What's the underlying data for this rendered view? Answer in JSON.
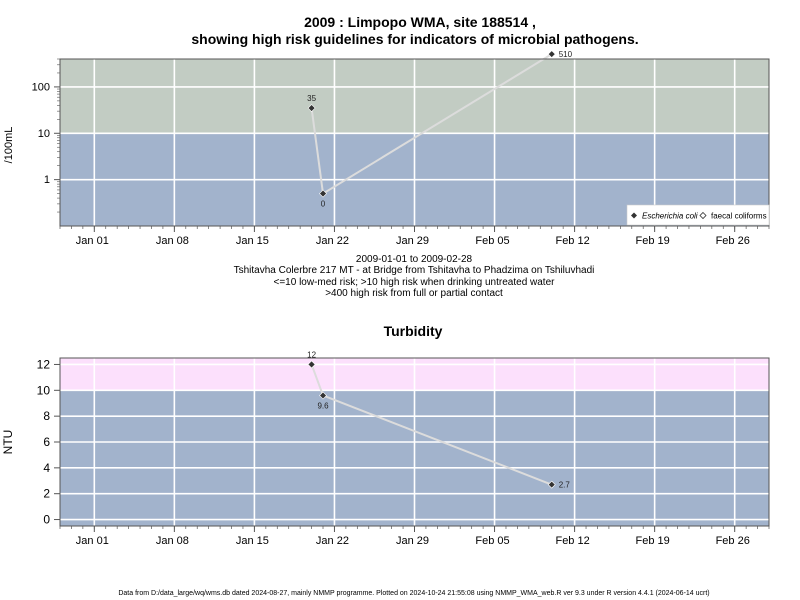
{
  "title_line1": "2009 : Limpopo WMA, site 188514 ,",
  "title_line2": "showing high risk guidelines for indicators of microbial pathogens.",
  "caption_lines": [
    "2009-01-01 to 2009-02-28",
    "Tshitavha Colerbre 217 MT - at Bridge from Tshitavha to Phadzima on Tshiluvhadi",
    "<=10 low-med risk; >10 high risk when drinking untreated water",
    ">400 high risk from full or partial contact"
  ],
  "footer": "Data from D:/data_large/wq/wms.db dated 2024-08-27, mainly NMMP programme. Plotted on 2024-10-24 21:55:08 using NMMP_WMA_web.R ver 9.3 under R version 4.4.1 (2024-06-14 ucrt)",
  "colors": {
    "band_low": "#a2b3cc",
    "band_high_micro": "#c2ccc3",
    "band_contact": "#fdf5c8",
    "band_turb_high": "#fce0fc",
    "grid": "#ffffff",
    "line": "#dcdcdc",
    "point": "#333333",
    "axis": "#555555"
  },
  "chart_data": [
    {
      "type": "line",
      "title": "",
      "xlabel": "",
      "ylabel": "/100mL",
      "y_scale": "log10",
      "xlim": [
        "2008-12-29",
        "2009-03-01"
      ],
      "ylim_display": [
        0.1,
        400
      ],
      "x_tick_labels": [
        "Jan 01",
        "Jan 08",
        "Jan 15",
        "Jan 22",
        "Jan 29",
        "Feb 05",
        "Feb 12",
        "Feb 19",
        "Feb 26"
      ],
      "x_ticks": [
        "2009-01-01",
        "2009-01-08",
        "2009-01-15",
        "2009-01-22",
        "2009-01-29",
        "2009-02-05",
        "2009-02-12",
        "2009-02-19",
        "2009-02-26"
      ],
      "y_tick_labels": [
        "1",
        "10",
        "100"
      ],
      "y_ticks": [
        1,
        10,
        100
      ],
      "bands": [
        {
          "from": 0.1,
          "to": 10,
          "color_key": "band_low"
        },
        {
          "from": 10,
          "to": 400,
          "color_key": "band_high_micro"
        },
        {
          "from": 400,
          "to": 700,
          "color_key": "band_contact"
        }
      ],
      "series": [
        {
          "name": "Escherichia coli",
          "x": [
            "2009-01-20",
            "2009-01-21",
            "2009-02-10"
          ],
          "y": [
            35,
            0.5,
            510
          ],
          "labels": [
            "35",
            "0",
            "510"
          ]
        }
      ],
      "legend": {
        "position": "bottom-right",
        "entries": [
          "Escherichia coli",
          "faecal coliforms"
        ]
      }
    },
    {
      "type": "line",
      "title": "Turbidity",
      "xlabel": "",
      "ylabel": "NTU",
      "xlim": [
        "2008-12-29",
        "2009-03-01"
      ],
      "ylim": [
        -0.5,
        12.5
      ],
      "x_tick_labels": [
        "Jan 01",
        "Jan 08",
        "Jan 15",
        "Jan 22",
        "Jan 29",
        "Feb 05",
        "Feb 12",
        "Feb 19",
        "Feb 26"
      ],
      "x_ticks": [
        "2009-01-01",
        "2009-01-08",
        "2009-01-15",
        "2009-01-22",
        "2009-01-29",
        "2009-02-05",
        "2009-02-12",
        "2009-02-19",
        "2009-02-26"
      ],
      "y_tick_labels": [
        "0",
        "2",
        "4",
        "6",
        "8",
        "10",
        "12"
      ],
      "y_ticks": [
        0,
        2,
        4,
        6,
        8,
        10,
        12
      ],
      "bands": [
        {
          "from": -0.5,
          "to": 10,
          "color_key": "band_low"
        },
        {
          "from": 10,
          "to": 12.5,
          "color_key": "band_turb_high"
        }
      ],
      "series": [
        {
          "name": "Turbidity",
          "x": [
            "2009-01-20",
            "2009-01-21",
            "2009-02-10"
          ],
          "y": [
            12,
            9.6,
            2.7
          ],
          "labels": [
            "12",
            "9.6",
            "2.7"
          ]
        }
      ]
    }
  ]
}
